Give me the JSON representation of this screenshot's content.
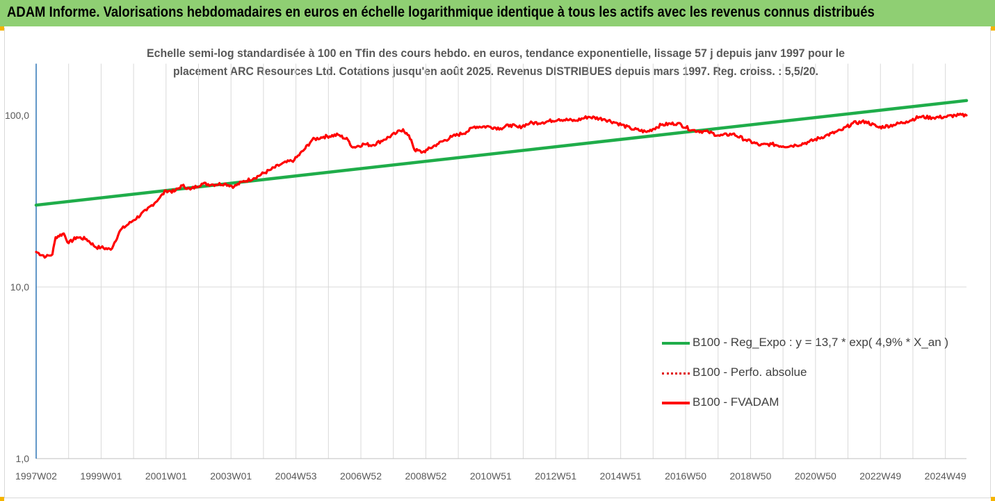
{
  "banner": {
    "title": "ADAM Informe. Valorisations hebdomadaires en euros en échelle logarithmique identique à tous les actifs avec les revenus connus distribués"
  },
  "colors": {
    "banner": "#8fcf73",
    "trend": "#1fad4a",
    "fvadam": "#ff0000",
    "perf": "#e00000",
    "axis": "#2e75b6",
    "grid": "#d9d9d9"
  },
  "chart_data": {
    "type": "line",
    "title": "Echelle semi-log standardisée à 100 en Tfin des cours hebdo. en euros, tendance exponentielle, lissage 57 j depuis janv 1997 pour le placement ARC Resources Ltd. Cotations jusqu'en août 2025. Revenus DISTRIBUES depuis mars 1997. Reg. croiss. : 5,5/20.",
    "title_lines": [
      "Echelle semi-log standardisée à 100 en Tfin des cours hebdo. en euros, tendance exponentielle, lissage 57 j depuis janv 1997 pour le",
      "placement ARC Resources Ltd. Cotations jusqu'en août 2025. Revenus DISTRIBUES depuis mars 1997. Reg. croiss. : 5,5/20."
    ],
    "y_scale": "log",
    "ylim": [
      1,
      200
    ],
    "y_ticks": [
      "1,0",
      "10,0",
      "100,0"
    ],
    "y_tick_values": [
      1,
      10,
      100
    ],
    "x_ticks": [
      "1997W02",
      "1999W01",
      "2001W01",
      "2003W01",
      "2004W53",
      "2006W52",
      "2008W52",
      "2010W51",
      "2012W51",
      "2014W51",
      "2016W50",
      "2018W50",
      "2020W50",
      "2022W49",
      "2024W49"
    ],
    "x_tick_years": [
      1997.0,
      1999.0,
      2001.0,
      2003.0,
      2005.0,
      2007.0,
      2009.0,
      2011.0,
      2013.0,
      2015.0,
      2017.0,
      2019.0,
      2021.0,
      2023.0,
      2025.0
    ],
    "xlim": [
      1997.0,
      2025.65
    ],
    "grid": "vertical",
    "legend_position": "bottom-right",
    "legend": [
      "B100 - Reg_Expo : y = 13,7 * exp( 4,9% *  X_an )",
      "B100 - Perfo. absolue",
      "B100 - FVADAM"
    ],
    "series": [
      {
        "name": "B100 - Reg_Expo : y = 13,7 * exp( 4,9% *  X_an )",
        "style": "solid-green",
        "x": [
          1997.0,
          2025.65
        ],
        "values": [
          30,
          122
        ]
      },
      {
        "name": "B100 - FVADAM",
        "style": "solid-red",
        "x": [
          1997.0,
          1997.3,
          1997.5,
          1997.6,
          1997.85,
          1998.0,
          1998.25,
          1998.55,
          1998.85,
          1999.0,
          1999.3,
          1999.6,
          2000.0,
          2000.4,
          2000.8,
          2001.0,
          2001.25,
          2001.5,
          2001.75,
          2002.1,
          2002.45,
          2002.8,
          2003.1,
          2003.35,
          2003.7,
          2004.2,
          2004.55,
          2004.95,
          2005.25,
          2005.5,
          2005.85,
          2006.3,
          2006.6,
          2006.75,
          2007.1,
          2007.35,
          2007.7,
          2008.1,
          2008.3,
          2008.55,
          2008.65,
          2008.9,
          2009.05,
          2009.35,
          2009.8,
          2010.25,
          2010.5,
          2010.95,
          2011.3,
          2011.6,
          2011.85,
          2012.2,
          2012.6,
          2013.1,
          2013.6,
          2014.0,
          2014.5,
          2014.9,
          2015.3,
          2015.8,
          2016.25,
          2016.75,
          2017.2,
          2017.7,
          2018.05,
          2018.45,
          2018.85,
          2019.3,
          2019.65,
          2020.0,
          2020.4,
          2020.8,
          2021.3,
          2021.8,
          2022.15,
          2022.55,
          2022.95,
          2023.4,
          2023.8,
          2024.2,
          2024.6,
          2025.0,
          2025.3,
          2025.65
        ],
        "values": [
          16,
          15,
          15.5,
          19.5,
          20.5,
          18,
          19.5,
          19,
          17,
          17,
          16.5,
          21.5,
          24.5,
          28,
          33,
          36.5,
          36,
          39,
          37,
          40,
          39.5,
          40,
          38.5,
          41,
          43,
          48,
          52,
          55,
          63,
          72,
          75,
          77,
          72,
          65,
          68,
          67,
          72,
          79,
          83,
          72,
          63,
          61,
          63,
          68,
          75,
          80,
          86,
          86,
          84,
          88,
          85,
          90,
          91,
          95,
          93,
          98,
          95,
          90,
          84,
          80,
          88,
          90,
          82,
          80,
          76,
          78,
          72,
          67,
          68,
          66,
          67,
          70,
          76,
          82,
          90,
          92,
          85,
          88,
          92,
          98,
          97,
          98,
          100,
          100
        ]
      }
    ]
  }
}
